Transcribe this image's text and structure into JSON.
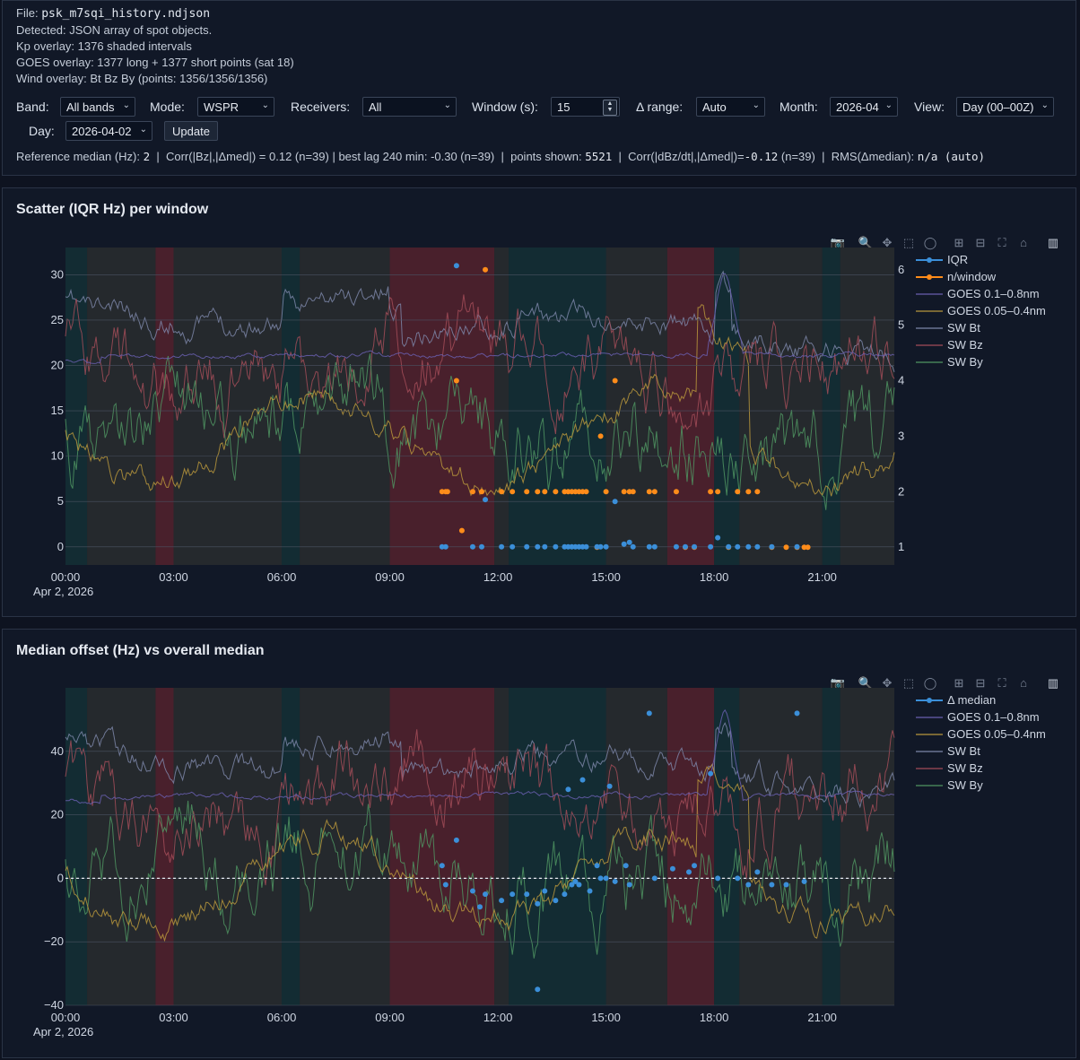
{
  "info": {
    "file_label": "File:",
    "file_name": "psk_m7sqi_history.ndjson",
    "detected": "Detected: JSON array of spot objects.",
    "kp_overlay": "Kp overlay: 1376 shaded intervals",
    "goes_overlay": "GOES overlay: 1377 long + 1377 short points (sat 18)",
    "wind_overlay": "Wind overlay: Bt Bz By (points: 1356/1356/1356)"
  },
  "controls": {
    "band_label": "Band:",
    "band_value": "All bands",
    "mode_label": "Mode:",
    "mode_value": "WSPR",
    "receivers_label": "Receivers:",
    "receivers_value": "All",
    "window_label": "Window (s):",
    "window_value": "15",
    "range_label": "Δ range:",
    "range_value": "Auto",
    "month_label": "Month:",
    "month_value": "2026-04",
    "view_label": "View:",
    "view_value": "Day (00–00Z)",
    "day_label": "Day:",
    "day_value": "2026-04-02",
    "update_label": "Update"
  },
  "stats": {
    "ref_label": "Reference median (Hz):",
    "ref_value": "2",
    "corr_bz": "Corr(|Bz|,|Δmed|) = 0.12 (n=39) | best lag 240 min: -0.30 (n=39)",
    "points_label": "points shown:",
    "points_value": "5521",
    "corr_dbz_label": "Corr(|dBz/dt|,|Δmed|)=",
    "corr_dbz_value": "-0.12",
    "corr_dbz_n": "(n=39)",
    "rms_label": "RMS(Δmedian):",
    "rms_value": "n/a (auto)"
  },
  "icons": [
    "camera-icon",
    "zoom-icon",
    "pan-icon",
    "box-select-icon",
    "lasso-icon",
    "zoom-in-icon",
    "zoom-out-icon",
    "autoscale-icon",
    "home-icon",
    "plotly-logo-icon"
  ],
  "colors": {
    "iqr": "#3b8fd9",
    "nwin": "#ff8c1a",
    "goes_long": "#6a5fb0",
    "goes_short": "#b8963c",
    "bt": "#7c86a8",
    "bz": "#a24c58",
    "by": "#4f9461",
    "kp_red": "#5a2230",
    "kp_teal": "#12323a",
    "kp_gray": "#2a2d31"
  },
  "chart_data": [
    {
      "type": "scatter",
      "title": "Scatter (IQR Hz) per window",
      "x_ticks": [
        "00:00",
        "03:00",
        "06:00",
        "09:00",
        "12:00",
        "15:00",
        "18:00",
        "21:00"
      ],
      "x_date": "Apr 2, 2026",
      "xlim_hours": [
        0,
        23
      ],
      "y_ticks": [
        "0",
        "5",
        "10",
        "15",
        "20",
        "25",
        "30"
      ],
      "ylim": [
        -2,
        33
      ],
      "y2_ticks": [
        "1",
        "2",
        "3",
        "4",
        "5",
        "6"
      ],
      "y2lim": [
        0.68,
        6.4
      ],
      "legend": [
        "IQR",
        "n/window",
        "GOES 0.1–0.8nm",
        "GOES 0.05–0.4nm",
        "SW Bt",
        "SW Bz",
        "SW By"
      ],
      "series": [
        {
          "name": "IQR",
          "axis": "y",
          "points": [
            [
              10.45,
              0
            ],
            [
              10.55,
              0
            ],
            [
              10.85,
              31
            ],
            [
              11.3,
              0
            ],
            [
              11.55,
              0
            ],
            [
              11.65,
              5.2
            ],
            [
              12.1,
              0
            ],
            [
              12.4,
              0
            ],
            [
              12.8,
              0
            ],
            [
              13.1,
              0
            ],
            [
              13.3,
              0
            ],
            [
              13.6,
              0
            ],
            [
              13.85,
              0
            ],
            [
              13.95,
              0
            ],
            [
              14.05,
              0
            ],
            [
              14.15,
              0
            ],
            [
              14.25,
              0
            ],
            [
              14.35,
              0
            ],
            [
              14.45,
              0
            ],
            [
              14.75,
              0
            ],
            [
              14.85,
              0
            ],
            [
              15.0,
              0
            ],
            [
              15.25,
              5
            ],
            [
              15.5,
              0.3
            ],
            [
              15.65,
              0.5
            ],
            [
              15.75,
              0
            ],
            [
              16.2,
              0
            ],
            [
              16.35,
              0
            ],
            [
              16.95,
              0
            ],
            [
              17.2,
              0
            ],
            [
              17.45,
              0
            ],
            [
              17.9,
              0
            ],
            [
              18.1,
              1
            ],
            [
              18.4,
              0
            ],
            [
              18.65,
              0
            ],
            [
              18.95,
              0
            ],
            [
              19.2,
              0
            ],
            [
              19.6,
              0
            ],
            [
              20.3,
              0
            ]
          ]
        },
        {
          "name": "n/window",
          "axis": "y2",
          "points": [
            [
              10.45,
              2
            ],
            [
              10.55,
              2
            ],
            [
              10.85,
              4
            ],
            [
              11.3,
              2
            ],
            [
              11.55,
              2
            ],
            [
              11.65,
              6
            ],
            [
              12.1,
              2
            ],
            [
              12.4,
              2
            ],
            [
              12.8,
              2
            ],
            [
              13.1,
              2
            ],
            [
              13.3,
              2
            ],
            [
              13.6,
              2
            ],
            [
              13.85,
              2
            ],
            [
              13.95,
              2
            ],
            [
              14.05,
              2
            ],
            [
              14.15,
              2
            ],
            [
              14.25,
              2
            ],
            [
              14.35,
              2
            ],
            [
              14.45,
              2
            ],
            [
              14.75,
              1
            ],
            [
              14.85,
              3
            ],
            [
              15.0,
              2
            ],
            [
              15.25,
              4
            ],
            [
              15.5,
              2
            ],
            [
              15.65,
              2
            ],
            [
              15.75,
              2
            ],
            [
              16.2,
              2
            ],
            [
              16.35,
              2
            ],
            [
              16.95,
              2
            ],
            [
              17.2,
              1
            ],
            [
              17.45,
              1
            ],
            [
              17.9,
              2
            ],
            [
              18.1,
              2
            ],
            [
              18.4,
              1
            ],
            [
              18.65,
              2
            ],
            [
              18.95,
              2
            ],
            [
              19.2,
              2
            ],
            [
              19.6,
              1
            ],
            [
              20.0,
              1
            ],
            [
              20.3,
              1
            ],
            [
              20.5,
              1
            ],
            [
              20.6,
              1
            ],
            [
              10.6,
              2
            ],
            [
              11.0,
              1.3
            ]
          ]
        }
      ]
    },
    {
      "type": "scatter",
      "title": "Median offset (Hz) vs overall median",
      "x_ticks": [
        "00:00",
        "03:00",
        "06:00",
        "09:00",
        "12:00",
        "15:00",
        "18:00",
        "21:00"
      ],
      "x_date": "Apr 2, 2026",
      "xlim_hours": [
        0,
        23
      ],
      "y_ticks": [
        "40",
        "20",
        "0",
        "−20",
        "−40"
      ],
      "ylim": [
        -40,
        60
      ],
      "legend": [
        "Δ median",
        "GOES 0.1–0.8nm",
        "GOES 0.05–0.4nm",
        "SW Bt",
        "SW Bz",
        "SW By"
      ],
      "series": [
        {
          "name": "Δ median",
          "points": [
            [
              10.45,
              4
            ],
            [
              10.55,
              -2
            ],
            [
              10.85,
              12
            ],
            [
              11.3,
              -4
            ],
            [
              11.5,
              -9
            ],
            [
              11.65,
              -5
            ],
            [
              12.1,
              -7
            ],
            [
              12.4,
              -5
            ],
            [
              12.8,
              -5
            ],
            [
              13.1,
              -35
            ],
            [
              13.1,
              -8
            ],
            [
              13.3,
              -4
            ],
            [
              13.6,
              -7
            ],
            [
              13.85,
              -5
            ],
            [
              13.95,
              28
            ],
            [
              14.05,
              -2
            ],
            [
              14.15,
              -1
            ],
            [
              14.25,
              -2
            ],
            [
              14.35,
              31
            ],
            [
              14.55,
              -4
            ],
            [
              14.75,
              4
            ],
            [
              14.85,
              0
            ],
            [
              15.0,
              0
            ],
            [
              15.1,
              29
            ],
            [
              15.25,
              -1
            ],
            [
              15.55,
              4
            ],
            [
              15.65,
              -2
            ],
            [
              16.2,
              52
            ],
            [
              16.35,
              0
            ],
            [
              16.85,
              3
            ],
            [
              17.3,
              2
            ],
            [
              17.45,
              4
            ],
            [
              17.9,
              33
            ],
            [
              18.1,
              0
            ],
            [
              18.65,
              0
            ],
            [
              18.95,
              -2
            ],
            [
              19.2,
              2
            ],
            [
              19.6,
              -2
            ],
            [
              20.0,
              -2
            ],
            [
              20.3,
              52
            ],
            [
              20.5,
              -1
            ]
          ]
        }
      ]
    }
  ]
}
